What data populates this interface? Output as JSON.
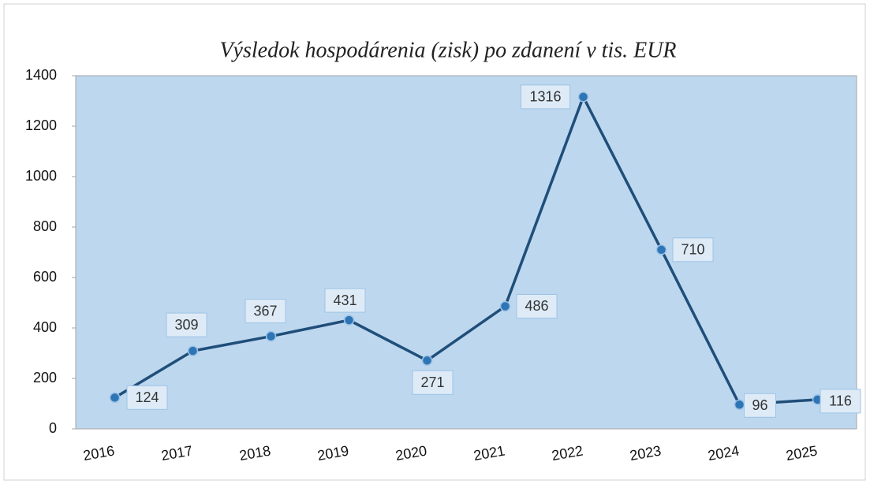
{
  "chart_data": {
    "type": "line",
    "title": "Výsledok hospodárenia (zisk) po zdanení v tis. EUR",
    "categories": [
      "2016",
      "2017",
      "2018",
      "2019",
      "2020",
      "2021",
      "2022",
      "2023",
      "2024",
      "2025"
    ],
    "series": [
      {
        "name": "Výsledok hospodárenia",
        "color": "#1f4e79",
        "values": [
          124,
          309,
          367,
          431,
          271,
          486,
          1316,
          710,
          96,
          116
        ]
      }
    ],
    "ylim": [
      0,
      1400
    ],
    "yticks": [
      0,
      200,
      400,
      600,
      800,
      1000,
      1200,
      1400
    ],
    "grid": false,
    "plot_background": "#bdd7ee",
    "marker_color": "#2e75b6"
  }
}
